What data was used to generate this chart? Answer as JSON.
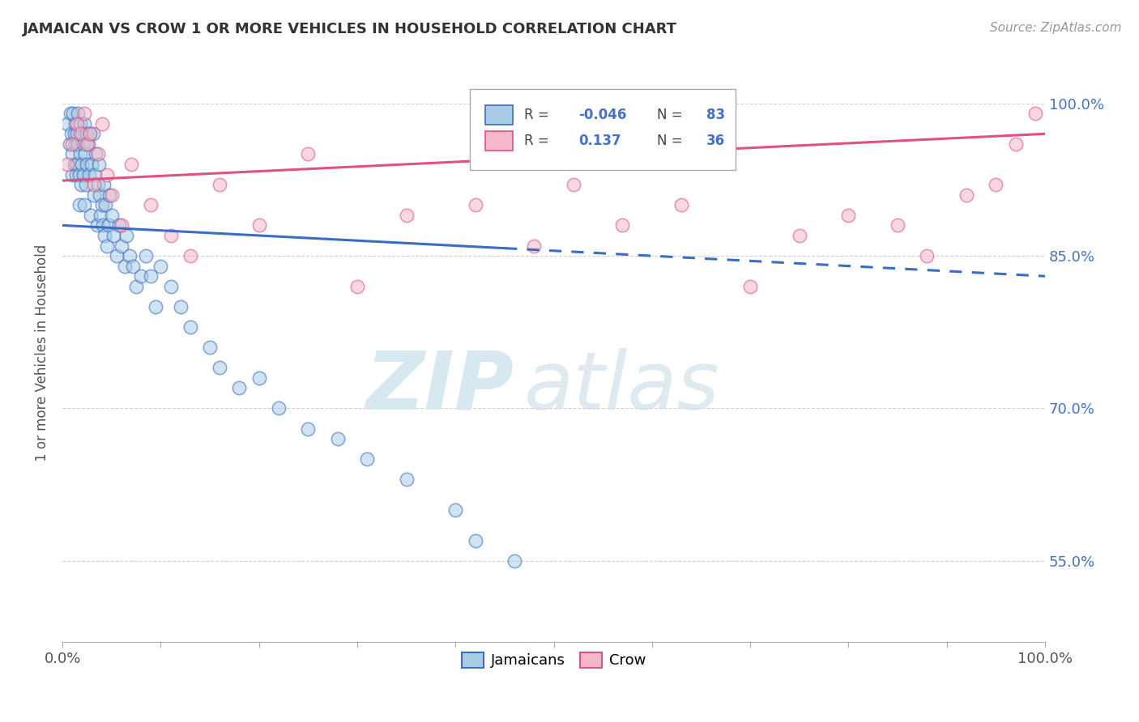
{
  "title": "JAMAICAN VS CROW 1 OR MORE VEHICLES IN HOUSEHOLD CORRELATION CHART",
  "source": "Source: ZipAtlas.com",
  "ylabel": "1 or more Vehicles in Household",
  "ytick_labels": [
    "55.0%",
    "70.0%",
    "85.0%",
    "100.0%"
  ],
  "ytick_values": [
    0.55,
    0.7,
    0.85,
    1.0
  ],
  "ylim": [
    0.47,
    1.04
  ],
  "xlim": [
    0.0,
    1.0
  ],
  "legend_blue_r": "-0.046",
  "legend_blue_n": "83",
  "legend_pink_r": "0.137",
  "legend_pink_n": "36",
  "blue_color": "#a8cce4",
  "pink_color": "#f4b8c8",
  "trendline_blue": "#3a6dc4",
  "trendline_pink": "#e05080",
  "blue_scatter_x": [
    0.005,
    0.007,
    0.008,
    0.009,
    0.01,
    0.01,
    0.011,
    0.012,
    0.012,
    0.013,
    0.013,
    0.014,
    0.015,
    0.015,
    0.016,
    0.016,
    0.017,
    0.017,
    0.018,
    0.018,
    0.019,
    0.02,
    0.02,
    0.021,
    0.021,
    0.022,
    0.022,
    0.023,
    0.024,
    0.025,
    0.025,
    0.026,
    0.027,
    0.028,
    0.029,
    0.03,
    0.031,
    0.032,
    0.033,
    0.034,
    0.035,
    0.036,
    0.037,
    0.038,
    0.039,
    0.04,
    0.041,
    0.042,
    0.043,
    0.044,
    0.045,
    0.047,
    0.048,
    0.05,
    0.052,
    0.055,
    0.058,
    0.06,
    0.063,
    0.065,
    0.068,
    0.072,
    0.075,
    0.08,
    0.085,
    0.09,
    0.095,
    0.1,
    0.11,
    0.12,
    0.13,
    0.15,
    0.16,
    0.18,
    0.2,
    0.22,
    0.25,
    0.28,
    0.31,
    0.35,
    0.4,
    0.42,
    0.46
  ],
  "blue_scatter_y": [
    0.98,
    0.96,
    0.99,
    0.97,
    0.95,
    0.93,
    0.99,
    0.97,
    0.94,
    0.98,
    0.96,
    0.93,
    0.97,
    0.94,
    0.99,
    0.96,
    0.93,
    0.9,
    0.98,
    0.95,
    0.92,
    0.97,
    0.94,
    0.96,
    0.93,
    0.98,
    0.9,
    0.95,
    0.92,
    0.97,
    0.94,
    0.96,
    0.93,
    0.97,
    0.89,
    0.94,
    0.97,
    0.91,
    0.93,
    0.95,
    0.88,
    0.92,
    0.94,
    0.91,
    0.89,
    0.9,
    0.88,
    0.92,
    0.87,
    0.9,
    0.86,
    0.88,
    0.91,
    0.89,
    0.87,
    0.85,
    0.88,
    0.86,
    0.84,
    0.87,
    0.85,
    0.84,
    0.82,
    0.83,
    0.85,
    0.83,
    0.8,
    0.84,
    0.82,
    0.8,
    0.78,
    0.76,
    0.74,
    0.72,
    0.73,
    0.7,
    0.68,
    0.67,
    0.65,
    0.63,
    0.6,
    0.57,
    0.55
  ],
  "pink_scatter_x": [
    0.005,
    0.01,
    0.015,
    0.018,
    0.022,
    0.025,
    0.028,
    0.032,
    0.036,
    0.04,
    0.045,
    0.05,
    0.06,
    0.07,
    0.09,
    0.11,
    0.13,
    0.16,
    0.2,
    0.25,
    0.3,
    0.35,
    0.42,
    0.48,
    0.52,
    0.57,
    0.63,
    0.7,
    0.75,
    0.8,
    0.85,
    0.88,
    0.92,
    0.95,
    0.97,
    0.99
  ],
  "pink_scatter_y": [
    0.94,
    0.96,
    0.98,
    0.97,
    0.99,
    0.96,
    0.97,
    0.92,
    0.95,
    0.98,
    0.93,
    0.91,
    0.88,
    0.94,
    0.9,
    0.87,
    0.85,
    0.92,
    0.88,
    0.95,
    0.82,
    0.89,
    0.9,
    0.86,
    0.92,
    0.88,
    0.9,
    0.82,
    0.87,
    0.89,
    0.88,
    0.85,
    0.91,
    0.92,
    0.96,
    0.99
  ],
  "watermark_zip": "ZIP",
  "watermark_atlas": "atlas",
  "background_color": "#ffffff",
  "grid_color": "#d0d0d0",
  "blue_trendline_start_y": 0.88,
  "blue_trendline_end_y": 0.83,
  "pink_trendline_start_y": 0.924,
  "pink_trendline_end_y": 0.97
}
